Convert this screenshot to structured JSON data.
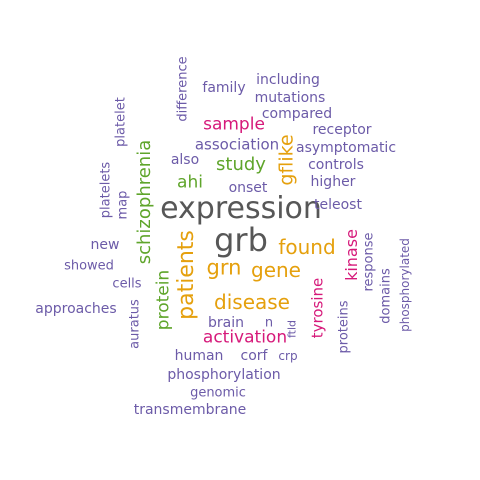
{
  "palette": {
    "gray": "#575757",
    "orange": "#E5A00D",
    "green": "#5FA52B",
    "magenta": "#D6197A",
    "purple": "#6C5BA8"
  },
  "words": [
    {
      "text": "expression",
      "color": "gray"
    },
    {
      "text": "grb",
      "color": "gray"
    },
    {
      "text": "found",
      "color": "orange"
    },
    {
      "text": "patients",
      "color": "orange",
      "rotate": true
    },
    {
      "text": "grn",
      "color": "orange"
    },
    {
      "text": "gene",
      "color": "orange"
    },
    {
      "text": "disease",
      "color": "orange"
    },
    {
      "text": "gflike",
      "color": "orange",
      "rotate": true
    },
    {
      "text": "schizophrenia",
      "color": "green",
      "rotate": true
    },
    {
      "text": "protein",
      "color": "green",
      "rotate": true
    },
    {
      "text": "study",
      "color": "green"
    },
    {
      "text": "ahi",
      "color": "green"
    },
    {
      "text": "sample",
      "color": "magenta"
    },
    {
      "text": "activation",
      "color": "magenta"
    },
    {
      "text": "tyrosine",
      "color": "magenta",
      "rotate": true
    },
    {
      "text": "kinase",
      "color": "magenta",
      "rotate": true
    },
    {
      "text": "association",
      "color": "purple"
    },
    {
      "text": "also",
      "color": "purple"
    },
    {
      "text": "onset",
      "color": "purple"
    },
    {
      "text": "higher",
      "color": "purple"
    },
    {
      "text": "controls",
      "color": "purple"
    },
    {
      "text": "asymptomatic",
      "color": "purple"
    },
    {
      "text": "receptor",
      "color": "purple"
    },
    {
      "text": "compared",
      "color": "purple"
    },
    {
      "text": "mutations",
      "color": "purple"
    },
    {
      "text": "including",
      "color": "purple"
    },
    {
      "text": "family",
      "color": "purple"
    },
    {
      "text": "difference",
      "color": "purple",
      "rotate": true
    },
    {
      "text": "platelet",
      "color": "purple",
      "rotate": true
    },
    {
      "text": "platelets",
      "color": "purple",
      "rotate": true
    },
    {
      "text": "map",
      "color": "purple",
      "rotate": true
    },
    {
      "text": "new",
      "color": "purple"
    },
    {
      "text": "showed",
      "color": "purple"
    },
    {
      "text": "cells",
      "color": "purple"
    },
    {
      "text": "approaches",
      "color": "purple"
    },
    {
      "text": "auratus",
      "color": "purple",
      "rotate": true
    },
    {
      "text": "teleost",
      "color": "purple"
    },
    {
      "text": "response",
      "color": "purple",
      "rotate": true
    },
    {
      "text": "domains",
      "color": "purple",
      "rotate": true
    },
    {
      "text": "phosphorylated",
      "color": "purple",
      "rotate": true
    },
    {
      "text": "proteins",
      "color": "purple",
      "rotate": true
    },
    {
      "text": "brain",
      "color": "purple"
    },
    {
      "text": "n",
      "color": "purple"
    },
    {
      "text": "ftld",
      "color": "purple",
      "rotate": true
    },
    {
      "text": "human",
      "color": "purple"
    },
    {
      "text": "corf",
      "color": "purple"
    },
    {
      "text": "crp",
      "color": "purple"
    },
    {
      "text": "phosphorylation",
      "color": "purple"
    },
    {
      "text": "genomic",
      "color": "purple"
    },
    {
      "text": "transmembrane",
      "color": "purple"
    }
  ]
}
